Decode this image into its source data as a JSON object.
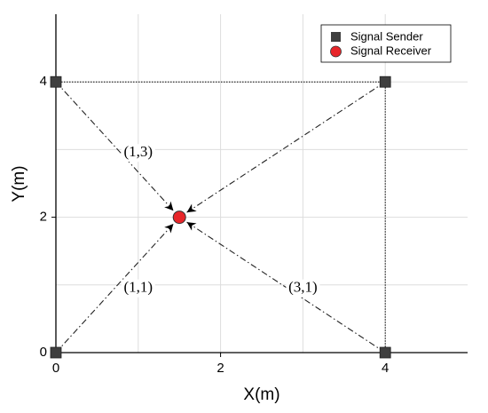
{
  "chart_data": {
    "type": "scatter",
    "xlabel": "X(m)",
    "ylabel": "Y(m)",
    "xlim": [
      0,
      5
    ],
    "ylim": [
      0,
      5
    ],
    "xticks": [
      0,
      2,
      4
    ],
    "yticks": [
      0,
      2,
      4
    ],
    "minor_grid": [
      1,
      3
    ],
    "grid": true,
    "legend": "upper right",
    "series": [
      {
        "name": "Signal Sender",
        "color": "#3f3f3f",
        "marker": "square",
        "x": [
          0,
          0,
          4,
          4
        ],
        "y": [
          0,
          4,
          4,
          0
        ]
      },
      {
        "name": "Signal Receiver",
        "color": "#e8262a",
        "marker": "circle",
        "x": [
          1.5
        ],
        "y": [
          2
        ]
      }
    ],
    "annotations": [
      "(1,3)",
      "(1,1)",
      "(3,1)"
    ]
  }
}
